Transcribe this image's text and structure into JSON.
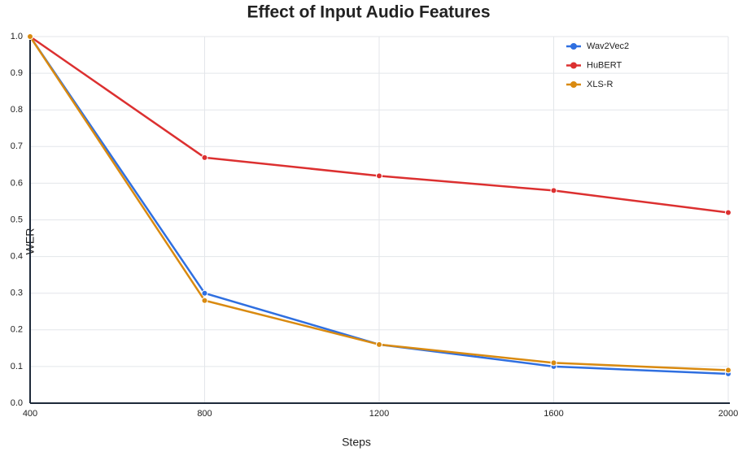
{
  "chart_data": {
    "type": "line",
    "title": "Effect of Input Audio Features",
    "x_label": "Steps",
    "y_label": "WER",
    "x": [
      400,
      800,
      1200,
      1600,
      2000
    ],
    "series": [
      {
        "name": "Wav2Vec2",
        "color": "#2f6fe0",
        "values": [
          1.0,
          0.3,
          0.16,
          0.1,
          0.08
        ]
      },
      {
        "name": "HuBERT",
        "color": "#dc3030",
        "values": [
          1.0,
          0.67,
          0.62,
          0.58,
          0.52
        ]
      },
      {
        "name": "XLS-R",
        "color": "#d98a10",
        "values": [
          1.0,
          0.28,
          0.16,
          0.11,
          0.09
        ]
      }
    ],
    "xlim": [
      400,
      2000
    ],
    "xticks": [
      400,
      800,
      1200,
      1600,
      2000
    ],
    "ylim": [
      0,
      1
    ],
    "yticks": [
      {
        "value": 0,
        "label": "0.0"
      },
      0.1,
      0.2,
      0.3,
      0.4,
      0.5,
      0.6,
      0.7,
      0.8,
      0.9,
      {
        "value": 1,
        "label": "1.0"
      }
    ],
    "grid": true,
    "legend": "upper right"
  }
}
